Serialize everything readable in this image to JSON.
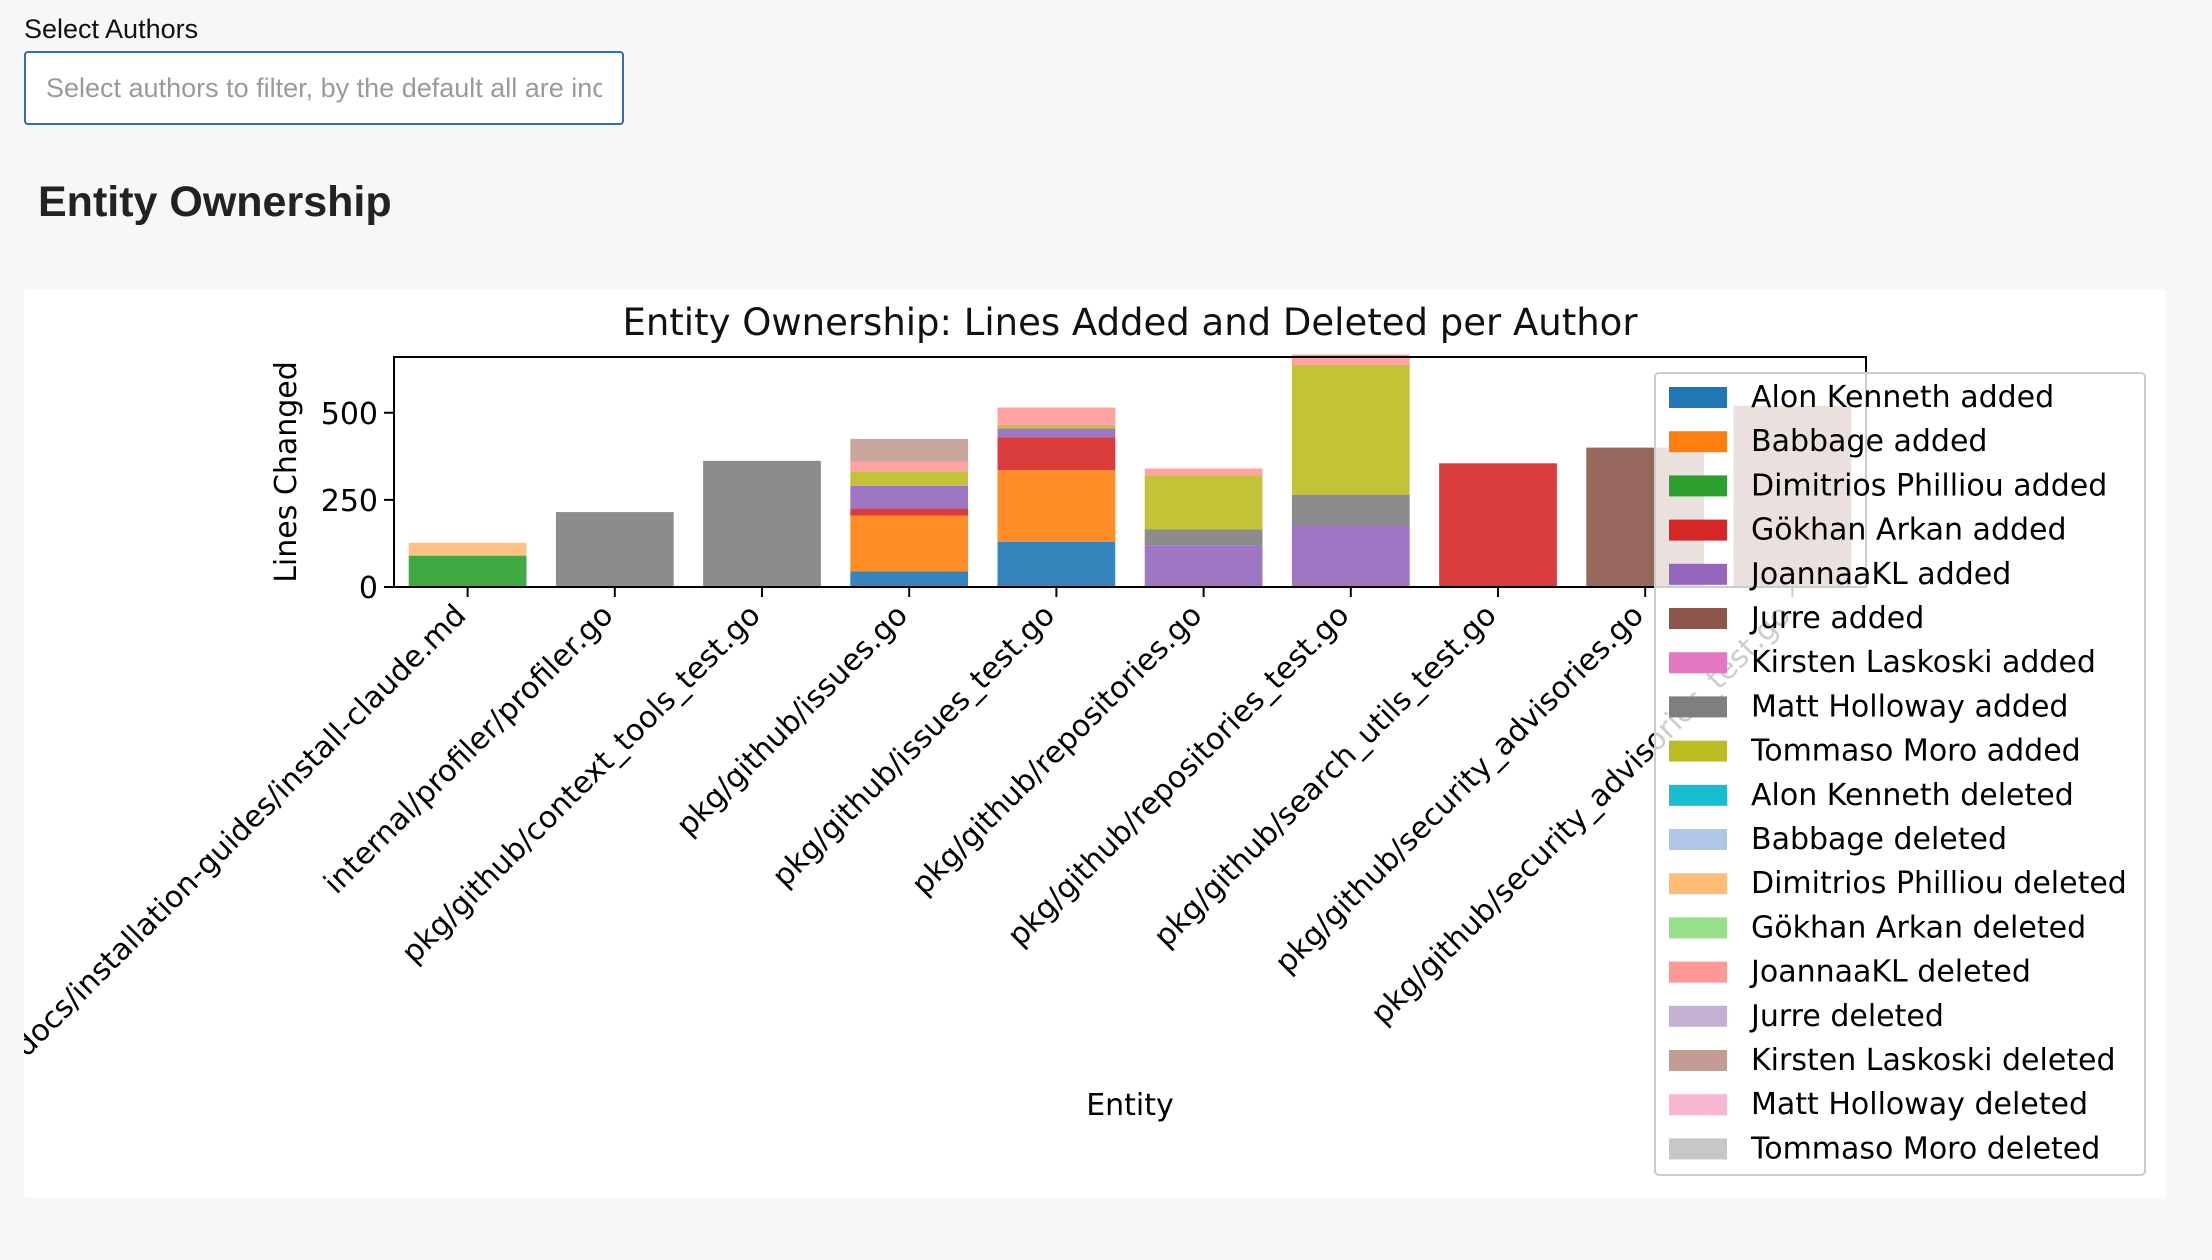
{
  "filter": {
    "label": "Select Authors",
    "placeholder": "Select authors to filter, by the default all are included"
  },
  "section": {
    "title": "Entity Ownership"
  },
  "chart_data": {
    "type": "bar",
    "stacked": true,
    "title": "Entity Ownership: Lines Added and Deleted per Author",
    "xlabel": "Entity",
    "ylabel": "Lines Changed",
    "ylim": [
      0,
      660
    ],
    "yticks": [
      0,
      250,
      500
    ],
    "legend_position": "right",
    "categories": [
      "docs/installation-guides/install-claude.md",
      "internal/profiler/profiler.go",
      "pkg/github/context_tools_test.go",
      "pkg/github/issues.go",
      "pkg/github/issues_test.go",
      "pkg/github/repositories.go",
      "pkg/github/repositories_test.go",
      "pkg/github/search_utils_test.go",
      "pkg/github/security_advisories.go",
      "pkg/github/security_advisories_test.go"
    ],
    "series": [
      {
        "name": "Alon Kenneth added",
        "color": "#1f77b4",
        "values": [
          0,
          0,
          0,
          45,
          130,
          0,
          0,
          0,
          0,
          0
        ]
      },
      {
        "name": "Babbage added",
        "color": "#ff7f0e",
        "values": [
          0,
          0,
          0,
          160,
          205,
          0,
          0,
          0,
          0,
          0
        ]
      },
      {
        "name": "Dimitrios Philliou added",
        "color": "#2ca02c",
        "values": [
          90,
          0,
          0,
          0,
          0,
          0,
          0,
          0,
          0,
          0
        ]
      },
      {
        "name": "Gökhan Arkan added",
        "color": "#d62728",
        "values": [
          0,
          0,
          0,
          20,
          95,
          0,
          0,
          355,
          0,
          0
        ]
      },
      {
        "name": "JoannaaKL added",
        "color": "#9467bd",
        "values": [
          0,
          0,
          0,
          65,
          25,
          120,
          175,
          0,
          0,
          0
        ]
      },
      {
        "name": "Jurre added",
        "color": "#8c564b",
        "values": [
          0,
          0,
          0,
          0,
          0,
          0,
          0,
          0,
          400,
          520
        ]
      },
      {
        "name": "Kirsten Laskoski added",
        "color": "#e377c2",
        "values": [
          0,
          0,
          0,
          0,
          0,
          0,
          0,
          0,
          0,
          0
        ]
      },
      {
        "name": "Matt Holloway added",
        "color": "#7f7f7f",
        "values": [
          0,
          215,
          362,
          0,
          0,
          45,
          90,
          0,
          0,
          0
        ]
      },
      {
        "name": "Tommaso Moro added",
        "color": "#bcbd22",
        "values": [
          0,
          0,
          0,
          42,
          10,
          155,
          372,
          0,
          0,
          0
        ]
      },
      {
        "name": "Alon Kenneth deleted",
        "color": "#17becf",
        "values": [
          0,
          0,
          0,
          0,
          0,
          0,
          0,
          0,
          0,
          0
        ]
      },
      {
        "name": "Babbage deleted",
        "color": "#aec7e8",
        "values": [
          0,
          0,
          0,
          0,
          0,
          0,
          0,
          0,
          0,
          0
        ]
      },
      {
        "name": "Dimitrios Philliou deleted",
        "color": "#ffbb78",
        "values": [
          37,
          0,
          0,
          0,
          0,
          0,
          0,
          0,
          0,
          0
        ]
      },
      {
        "name": "Gökhan Arkan deleted",
        "color": "#98df8a",
        "values": [
          0,
          0,
          0,
          0,
          0,
          0,
          0,
          0,
          0,
          0
        ]
      },
      {
        "name": "JoannaaKL deleted",
        "color": "#ff9896",
        "values": [
          0,
          0,
          0,
          28,
          50,
          20,
          30,
          0,
          0,
          0
        ]
      },
      {
        "name": "Jurre deleted",
        "color": "#c5b0d5",
        "values": [
          0,
          0,
          0,
          0,
          0,
          0,
          0,
          0,
          0,
          0
        ]
      },
      {
        "name": "Kirsten Laskoski deleted",
        "color": "#c49c94",
        "values": [
          0,
          0,
          0,
          65,
          0,
          0,
          0,
          0,
          0,
          0
        ]
      },
      {
        "name": "Matt Holloway deleted",
        "color": "#f7b6d2",
        "values": [
          0,
          0,
          0,
          0,
          0,
          0,
          0,
          0,
          0,
          0
        ]
      },
      {
        "name": "Tommaso Moro deleted",
        "color": "#c7c7c7",
        "values": [
          0,
          0,
          0,
          0,
          0,
          0,
          0,
          0,
          0,
          0
        ]
      }
    ]
  }
}
